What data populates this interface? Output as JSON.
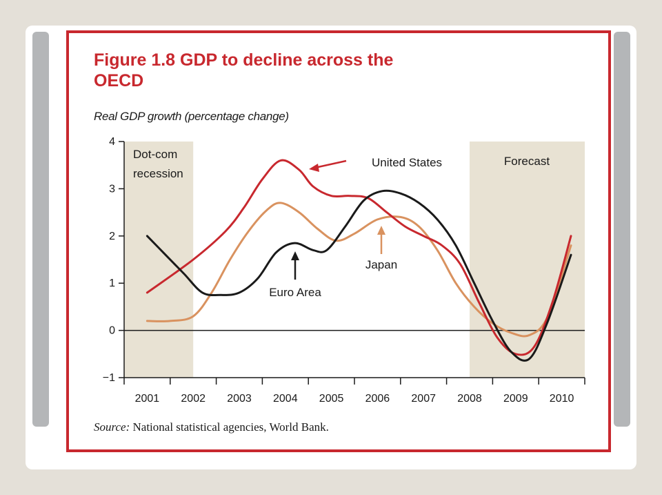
{
  "figure": {
    "title_line1": "Figure 1.8  GDP to decline across the",
    "title_line2": "OECD",
    "subtitle": "Real GDP growth (percentage change)",
    "source_label": "Source:",
    "source_text": " National statistical agencies, World Bank."
  },
  "colors": {
    "frame": "#c8282e",
    "shade": "#e8e2d3",
    "united_states": "#c8282e",
    "euro_area": "#1a1a1a",
    "japan": "#d9925f"
  },
  "chart_data": {
    "type": "line",
    "title": "Figure 1.8 GDP to decline across the OECD",
    "ylabel": "Real GDP growth (percentage change)",
    "xlabel": "",
    "categories": [
      "2001",
      "2002",
      "2003",
      "2004",
      "2005",
      "2006",
      "2007",
      "2008",
      "2009",
      "2010"
    ],
    "ylim": [
      -1,
      4
    ],
    "yticks": [
      4,
      3,
      2,
      1,
      0,
      -1
    ],
    "ytick_labels": [
      "4",
      "3",
      "2",
      "1",
      "0",
      "−1"
    ],
    "grid": false,
    "shaded_regions": [
      {
        "label_lines": [
          "Dot-com",
          "recession"
        ],
        "from": 2000.5,
        "to": 2002.0
      },
      {
        "label_lines": [
          "Forecast"
        ],
        "from": 2008.0,
        "to": 2010.5
      }
    ],
    "series": [
      {
        "name": "United States",
        "color": "#c8282e",
        "x": [
          2001.0,
          2002.0,
          2002.7,
          2003.1,
          2003.5,
          2003.9,
          2004.3,
          2004.6,
          2005.0,
          2005.4,
          2005.8,
          2006.2,
          2006.6,
          2007.0,
          2007.4,
          2007.8,
          2008.2,
          2008.6,
          2009.0,
          2009.4,
          2009.8,
          2010.2
        ],
        "values": [
          0.8,
          1.5,
          2.1,
          2.6,
          3.2,
          3.6,
          3.4,
          3.05,
          2.85,
          2.85,
          2.8,
          2.5,
          2.2,
          2.0,
          1.8,
          1.4,
          0.6,
          -0.15,
          -0.5,
          -0.35,
          0.6,
          2.0
        ]
      },
      {
        "name": "Euro Area",
        "color": "#1a1a1a",
        "x": [
          2001.0,
          2001.4,
          2001.8,
          2002.2,
          2002.6,
          2003.0,
          2003.4,
          2003.8,
          2004.2,
          2004.6,
          2004.9,
          2005.3,
          2005.7,
          2006.1,
          2006.5,
          2006.9,
          2007.3,
          2007.7,
          2008.1,
          2008.5,
          2008.9,
          2009.3,
          2009.7,
          2010.2
        ],
        "values": [
          2.0,
          1.6,
          1.2,
          0.8,
          0.75,
          0.8,
          1.1,
          1.65,
          1.85,
          1.7,
          1.7,
          2.2,
          2.75,
          2.95,
          2.9,
          2.7,
          2.35,
          1.8,
          1.0,
          0.2,
          -0.45,
          -0.6,
          0.2,
          1.6
        ]
      },
      {
        "name": "Japan",
        "color": "#d9925f",
        "x": [
          2001.0,
          2001.5,
          2002.0,
          2002.4,
          2002.8,
          2003.2,
          2003.6,
          2003.9,
          2004.3,
          2004.7,
          2005.1,
          2005.5,
          2006.0,
          2006.5,
          2006.9,
          2007.3,
          2007.7,
          2008.1,
          2008.5,
          2008.9,
          2009.3,
          2009.7,
          2010.2
        ],
        "values": [
          0.2,
          0.2,
          0.3,
          0.8,
          1.5,
          2.1,
          2.55,
          2.7,
          2.5,
          2.15,
          1.9,
          2.05,
          2.35,
          2.4,
          2.2,
          1.7,
          1.0,
          0.5,
          0.15,
          -0.05,
          -0.1,
          0.3,
          1.8
        ]
      }
    ],
    "annotations": [
      {
        "text": "United States",
        "series": "United States"
      },
      {
        "text": "Euro Area",
        "series": "Euro Area"
      },
      {
        "text": "Japan",
        "series": "Japan"
      }
    ]
  }
}
